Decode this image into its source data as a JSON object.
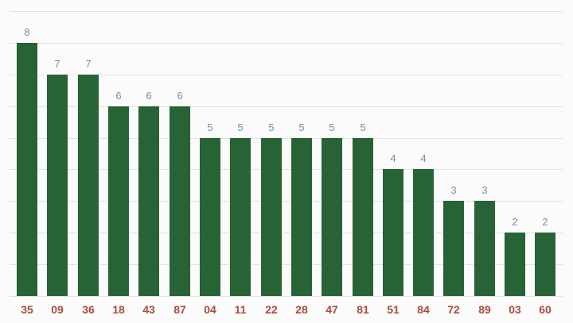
{
  "chart_data": {
    "type": "bar",
    "title": "",
    "xlabel": "",
    "ylabel": "",
    "categories": [
      "35",
      "09",
      "36",
      "18",
      "43",
      "87",
      "04",
      "11",
      "22",
      "28",
      "47",
      "81",
      "51",
      "84",
      "72",
      "89",
      "03",
      "60"
    ],
    "values": [
      8,
      7,
      7,
      6,
      6,
      6,
      5,
      5,
      5,
      5,
      5,
      5,
      4,
      4,
      3,
      3,
      2,
      2
    ],
    "ylim": [
      0,
      9
    ],
    "gridline_step": 1,
    "grid": true,
    "legend": "none",
    "annotations": "value-above-each-bar",
    "x_axis_labels": "below-each-bar"
  },
  "colors": {
    "background": "#fbfbfb",
    "bar": "#276334",
    "gridline": "#e1e1e1",
    "value_label": "#6b94ae",
    "category_label": "#a84d3e"
  }
}
